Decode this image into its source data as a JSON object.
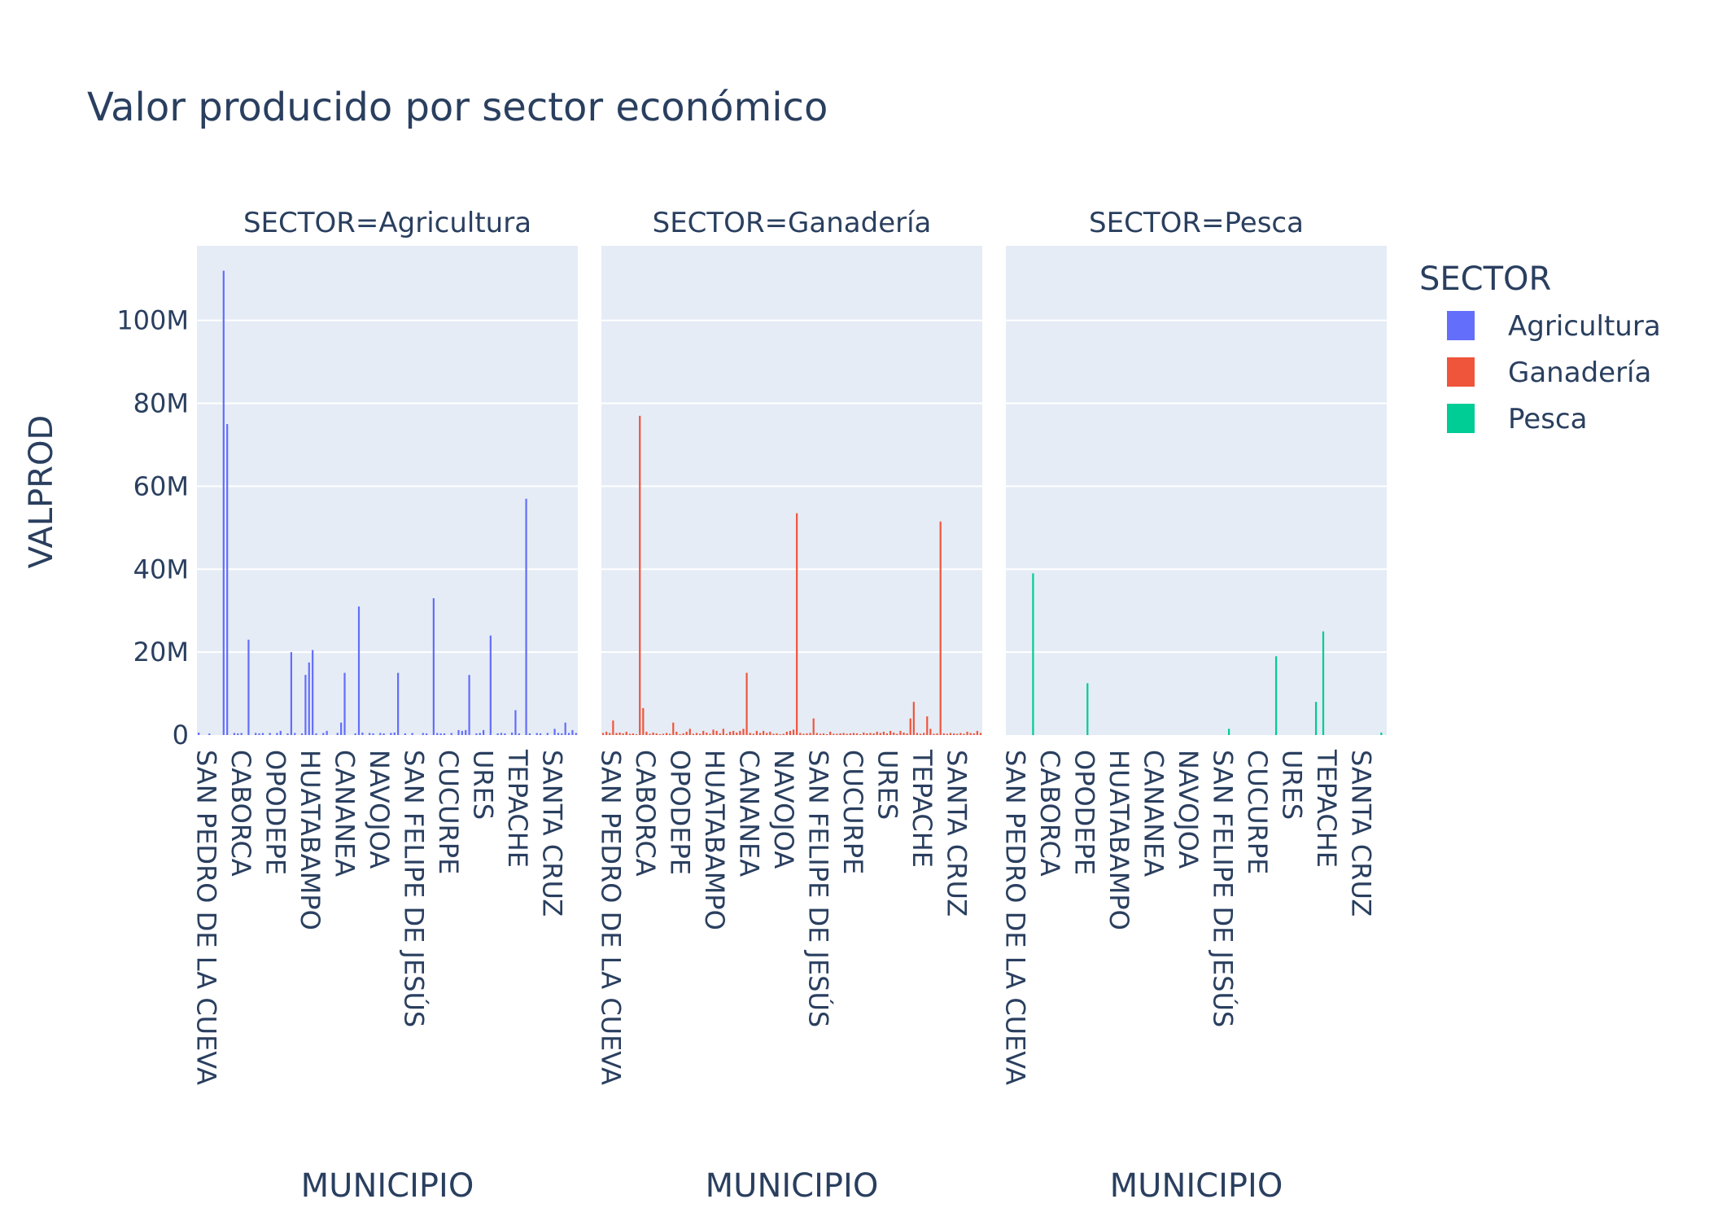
{
  "chart_data": {
    "type": "bar",
    "title": "Valor producido por sector económico",
    "xlabel": "MUNICIPIO",
    "ylabel": "VALPROD",
    "ylim": [
      0,
      118000000
    ],
    "yticks": [
      0,
      20000000,
      40000000,
      60000000,
      80000000,
      100000000
    ],
    "ytick_labels": [
      "0",
      "20M",
      "40M",
      "60M",
      "80M",
      "100M"
    ],
    "xtick_labels": [
      "SAN PEDRO DE LA CUEVA",
      "CABORCA",
      "OPODEPE",
      "HUATABAMPO",
      "CANANEA",
      "NAVOJOA",
      "SAN FELIPE DE JESÚS",
      "CUCURPE",
      "URES",
      "TEPACHE",
      "SANTA CRUZ"
    ],
    "legend": {
      "title": "SECTOR",
      "position": "right"
    },
    "grid": true,
    "facets": [
      {
        "name": "Agricultura",
        "label": "SECTOR=Agricultura",
        "color": "#636efa",
        "values": [
          0.6,
          0,
          0,
          0.4,
          0,
          0,
          0,
          112,
          75,
          0,
          0.5,
          0.4,
          0.5,
          0,
          23,
          0,
          0.5,
          0.4,
          0.5,
          0,
          0.5,
          0,
          0.5,
          1.0,
          0,
          0.4,
          20,
          0.5,
          0,
          0.4,
          14.5,
          17.5,
          20.5,
          0.4,
          0,
          0.5,
          1.0,
          0,
          0,
          0.5,
          3.0,
          15,
          0,
          0,
          0.4,
          31,
          0.6,
          0,
          0.5,
          0.4,
          0,
          0.5,
          0.4,
          0,
          0.5,
          0.6,
          15,
          0,
          0.4,
          0,
          0.5,
          0,
          0,
          0.5,
          0.4,
          0,
          33,
          0.5,
          0.4,
          0.4,
          0,
          0.5,
          0,
          1.2,
          1.0,
          1.2,
          14.5,
          0,
          0.4,
          0.5,
          1.2,
          0,
          24,
          0,
          0.4,
          0.5,
          0.4,
          0,
          0.6,
          6.0,
          0.4,
          0,
          57,
          0.4,
          0,
          0.5,
          0.4,
          0,
          0.5,
          0,
          1.5,
          0.5,
          0.4,
          3.0,
          0.5,
          1.2,
          0.5
        ],
        "unit_note": "values in millions"
      },
      {
        "name": "Ganadería",
        "label": "SECTOR=Ganadería",
        "color": "#ef553b",
        "values": [
          0.5,
          0.8,
          0.5,
          3.5,
          0.5,
          0.6,
          0.4,
          0.8,
          0.3,
          0.4,
          0.2,
          77,
          6.5,
          0.8,
          0.3,
          0.6,
          0.4,
          0.2,
          0.3,
          0.5,
          0.3,
          3.0,
          0.8,
          0.2,
          0.4,
          0.8,
          1.5,
          0.3,
          0.5,
          0.3,
          1.0,
          0.6,
          0.3,
          1.3,
          1.0,
          0.4,
          1.5,
          0.3,
          0.8,
          1.0,
          0.6,
          1.0,
          1.5,
          15,
          0.5,
          0.3,
          1.0,
          0.5,
          1.0,
          0.5,
          0.8,
          0.3,
          0.4,
          0.2,
          0.3,
          0.8,
          1.0,
          1.3,
          53.5,
          0.5,
          0.3,
          0.4,
          0.5,
          4.0,
          0.5,
          0.3,
          0.4,
          0.2,
          0.8,
          0.3,
          0.3,
          0.4,
          0.5,
          0.3,
          0.4,
          0.5,
          0.4,
          0.2,
          0.6,
          0.4,
          0.5,
          0.4,
          0.8,
          0.5,
          0.8,
          0.4,
          1.0,
          0.6,
          0.3,
          1.0,
          0.6,
          0.4,
          4.0,
          8.0,
          0.5,
          0.3,
          0.5,
          4.5,
          1.5,
          0.3,
          0.4,
          51.5,
          0.4,
          0.3,
          0.5,
          0.4,
          0.3,
          0.5,
          0.3,
          0.8,
          0.5,
          0.4,
          1.0,
          0.5
        ],
        "unit_note": "values in millions"
      },
      {
        "name": "Pesca",
        "label": "SECTOR=Pesca",
        "color": "#00cc96",
        "values": [
          0,
          0,
          0,
          0,
          0,
          0,
          0,
          39,
          0,
          0,
          0,
          0,
          0,
          0,
          0,
          0,
          0,
          0,
          0,
          0,
          0,
          0,
          12.5,
          0,
          0,
          0,
          0,
          0,
          0,
          0,
          0,
          0,
          0,
          0,
          0,
          0,
          0,
          0,
          0,
          0,
          0,
          0,
          0,
          0,
          0,
          0,
          0,
          0,
          0,
          0,
          0,
          0,
          0,
          0,
          0,
          0,
          0,
          0,
          0,
          0,
          0,
          1.5,
          0,
          0,
          0,
          0,
          0,
          0,
          0,
          0,
          0,
          0,
          0,
          0,
          19,
          0,
          0,
          0,
          0,
          0,
          0,
          0,
          0,
          0,
          0,
          8.0,
          0,
          25,
          0,
          0,
          0,
          0,
          0,
          0,
          0,
          0,
          0,
          0,
          0,
          0,
          0,
          0,
          0,
          0.6,
          0
        ],
        "unit_note": "values in millions"
      }
    ]
  }
}
